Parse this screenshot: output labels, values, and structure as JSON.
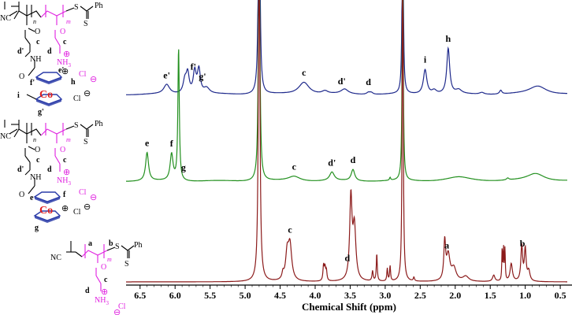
{
  "chart_data": {
    "type": "line",
    "xlabel": "Chemical Shift (ppm)",
    "x_reversed": true,
    "xlim": [
      6.7,
      0.4
    ],
    "x_ticks": [
      "6.5",
      "6.0",
      "5.5",
      "5.0",
      "4.5",
      "4.0",
      "3.5",
      "3.0",
      "2.5",
      "2.0",
      "1.5",
      "1.0",
      "0.5"
    ],
    "x_tick_values": [
      6.5,
      6.0,
      5.5,
      5.0,
      4.5,
      4.0,
      3.5,
      3.0,
      2.5,
      2.0,
      1.5,
      1.0,
      0.5
    ],
    "y_axis_shown": false,
    "grid": false,
    "colors": {
      "top": "#1f2a8c",
      "middle": "#23901f",
      "bottom": "#8b1a1a",
      "structure_main": "#000000",
      "structure_accent": "#e020e0",
      "cobalt": "#e02020",
      "cp_ring": "#2a3ba8"
    },
    "series": [
      {
        "key": "top",
        "color": "#1f2a8c",
        "baseline": 0.06,
        "noise_width": 0.04,
        "peaks": [
          {
            "x": 6.12,
            "height": 0.1,
            "width": 0.05
          },
          {
            "x": 5.86,
            "height": 0.14,
            "width": 0.03
          },
          {
            "x": 5.82,
            "height": 0.2,
            "width": 0.025
          },
          {
            "x": 5.72,
            "height": 0.23,
            "width": 0.025
          },
          {
            "x": 5.66,
            "height": 0.25,
            "width": 0.025
          },
          {
            "x": 5.55,
            "height": 0.06,
            "width": 0.05
          },
          {
            "x": 4.16,
            "height": 0.13,
            "width": 0.09
          },
          {
            "x": 3.86,
            "height": 0.03,
            "width": 0.05
          },
          {
            "x": 3.58,
            "height": 0.05,
            "width": 0.06
          },
          {
            "x": 3.24,
            "height": 0.02,
            "width": 0.03
          },
          {
            "x": 3.2,
            "height": 0.02,
            "width": 0.03
          },
          {
            "x": 2.43,
            "height": 0.26,
            "width": 0.03
          },
          {
            "x": 2.3,
            "height": 0.04,
            "width": 0.04
          },
          {
            "x": 2.1,
            "height": 0.48,
            "width": 0.025
          },
          {
            "x": 1.95,
            "height": 0.04,
            "width": 0.05
          },
          {
            "x": 1.62,
            "height": 0.02,
            "width": 0.04
          },
          {
            "x": 1.35,
            "height": 0.04,
            "width": 0.02
          },
          {
            "x": 0.82,
            "height": 0.09,
            "width": 0.15
          },
          {
            "x": 4.8,
            "height": 3.0,
            "width": 0.012
          },
          {
            "x": 2.75,
            "height": 3.0,
            "width": 0.008
          }
        ],
        "labels": [
          {
            "text": "e'",
            "x": 6.12
          },
          {
            "text": "f'",
            "x": 5.74
          },
          {
            "text": "g'",
            "x": 5.61
          },
          {
            "text": "c",
            "x": 4.16
          },
          {
            "text": "d'",
            "x": 3.62
          },
          {
            "text": "d",
            "x": 3.24
          },
          {
            "text": "i",
            "x": 2.43
          },
          {
            "text": "h",
            "x": 2.1
          }
        ]
      },
      {
        "key": "middle",
        "color": "#23901f",
        "baseline": 0.06,
        "noise_width": 0.04,
        "peaks": [
          {
            "x": 6.4,
            "height": 0.3,
            "width": 0.025
          },
          {
            "x": 6.05,
            "height": 0.28,
            "width": 0.025
          },
          {
            "x": 5.95,
            "height": 1.4,
            "width": 0.012
          },
          {
            "x": 4.3,
            "height": 0.05,
            "width": 0.1
          },
          {
            "x": 3.76,
            "height": 0.09,
            "width": 0.04
          },
          {
            "x": 3.46,
            "height": 0.12,
            "width": 0.03
          },
          {
            "x": 2.93,
            "height": 0.03,
            "width": 0.01
          },
          {
            "x": 1.95,
            "height": 0.04,
            "width": 0.2
          },
          {
            "x": 1.25,
            "height": 0.02,
            "width": 0.02
          },
          {
            "x": 0.85,
            "height": 0.08,
            "width": 0.15
          },
          {
            "x": 4.8,
            "height": 3.0,
            "width": 0.012
          },
          {
            "x": 2.75,
            "height": 3.0,
            "width": 0.008
          }
        ],
        "labels": [
          {
            "text": "e",
            "x": 6.4
          },
          {
            "text": "f",
            "x": 6.05
          },
          {
            "text": "g",
            "x": 5.88
          },
          {
            "text": "c",
            "x": 4.3
          },
          {
            "text": "d'",
            "x": 3.76
          },
          {
            "text": "d",
            "x": 3.46
          }
        ]
      },
      {
        "key": "bottom",
        "color": "#8b1a1a",
        "baseline": 0.02,
        "noise_width": 0.0,
        "peaks": [
          {
            "x": 4.46,
            "height": 0.05,
            "width": 0.015
          },
          {
            "x": 4.4,
            "height": 0.2,
            "width": 0.025
          },
          {
            "x": 4.36,
            "height": 0.28,
            "width": 0.03
          },
          {
            "x": 3.88,
            "height": 0.12,
            "width": 0.01
          },
          {
            "x": 3.86,
            "height": 0.1,
            "width": 0.01
          },
          {
            "x": 3.84,
            "height": 0.08,
            "width": 0.01
          },
          {
            "x": 3.49,
            "height": 0.65,
            "width": 0.02
          },
          {
            "x": 3.44,
            "height": 0.42,
            "width": 0.025
          },
          {
            "x": 3.18,
            "height": 0.08,
            "width": 0.01
          },
          {
            "x": 3.12,
            "height": 0.22,
            "width": 0.008
          },
          {
            "x": 2.97,
            "height": 0.1,
            "width": 0.008
          },
          {
            "x": 2.93,
            "height": 0.12,
            "width": 0.008
          },
          {
            "x": 2.59,
            "height": 0.03,
            "width": 0.01
          },
          {
            "x": 2.15,
            "height": 0.3,
            "width": 0.015
          },
          {
            "x": 2.1,
            "height": 0.2,
            "width": 0.03
          },
          {
            "x": 2.02,
            "height": 0.1,
            "width": 0.04
          },
          {
            "x": 1.85,
            "height": 0.04,
            "width": 0.05
          },
          {
            "x": 1.45,
            "height": 0.05,
            "width": 0.02
          },
          {
            "x": 1.33,
            "height": 0.25,
            "width": 0.006
          },
          {
            "x": 1.31,
            "height": 0.25,
            "width": 0.006
          },
          {
            "x": 1.29,
            "height": 0.25,
            "width": 0.006
          },
          {
            "x": 1.2,
            "height": 0.14,
            "width": 0.02
          },
          {
            "x": 1.05,
            "height": 0.28,
            "width": 0.015
          },
          {
            "x": 1.0,
            "height": 0.25,
            "width": 0.015
          },
          {
            "x": 0.95,
            "height": 0.08,
            "width": 0.02
          },
          {
            "x": 4.8,
            "height": 3.0,
            "width": 0.012
          },
          {
            "x": 2.75,
            "height": 3.0,
            "width": 0.008
          }
        ],
        "labels": [
          {
            "text": "c",
            "x": 4.36
          },
          {
            "text": "d",
            "x": 3.54
          },
          {
            "text": "a",
            "x": 2.12
          },
          {
            "text": "b",
            "x": 1.04
          }
        ]
      }
    ]
  },
  "structures": [
    {
      "chain_letters": [
        "n",
        "m"
      ],
      "end_group": "S",
      "end_substituent": "Ph",
      "thio": "S",
      "nitrile": "NC",
      "carbonyl_o": "O",
      "side_chain_letters": [
        "c",
        "d'",
        "c",
        "d"
      ],
      "amide": "NH",
      "amide_o": "O",
      "ammonium": "NH",
      "ammonium_sub": "3",
      "plus": "⊕",
      "chloride": "Cl",
      "minus": "⊖",
      "cp_labels": [
        "e'",
        "f'",
        "h",
        "i",
        "g'"
      ],
      "metal": "Co",
      "metal_charge": "⊕",
      "counterion": "Cl",
      "counterion_charge": "⊖"
    },
    {
      "chain_letters": [
        "n",
        "m"
      ],
      "end_group": "S",
      "end_substituent": "Ph",
      "thio": "S",
      "nitrile": "NC",
      "carbonyl_o": "O",
      "side_chain_letters": [
        "c",
        "d'",
        "c",
        "d"
      ],
      "amide": "NH",
      "amide_o": "O",
      "ammonium": "NH",
      "ammonium_sub": "3",
      "plus": "⊕",
      "chloride": "Cl",
      "minus": "⊖",
      "cp_labels": [
        "e",
        "f",
        "g"
      ],
      "metal": "Co",
      "metal_charge": "⊕",
      "counterion": "Cl",
      "counterion_charge": "⊖"
    },
    {
      "chain_letters": [
        "m"
      ],
      "backbone_letters": [
        "a",
        "b"
      ],
      "end_group": "S",
      "end_substituent": "Ph",
      "thio": "S",
      "nitrile": "NC",
      "carbonyl_o": "O",
      "side_chain_letters": [
        "c",
        "d"
      ],
      "ammonium": "NH",
      "ammonium_sub": "3",
      "plus": "⊕",
      "chloride": "Cl",
      "minus": "⊖"
    }
  ]
}
